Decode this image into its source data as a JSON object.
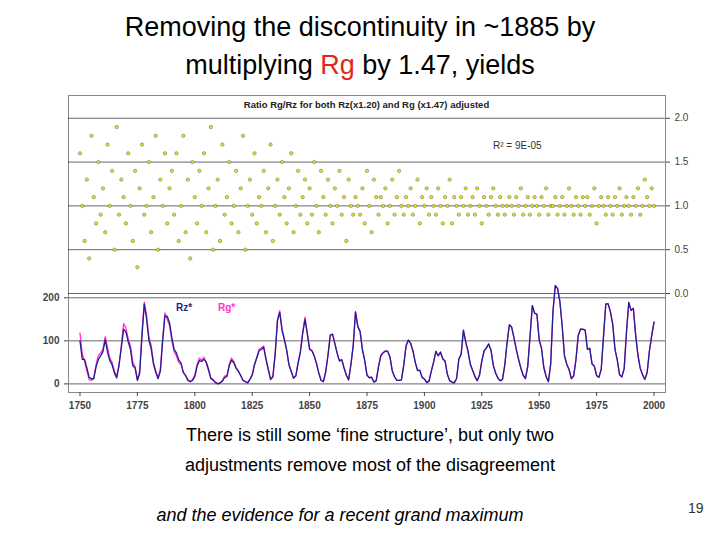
{
  "slide": {
    "title": [
      "Removing the discontinuity in ~1885 by",
      "multiplying Rg by 1.47, yields"
    ],
    "title_highlight": "Rg",
    "title_highlight_color": "#e3261d",
    "caption": [
      "There is still some ‘fine structure’, but only two",
      "adjustments remove most of the disagreement"
    ],
    "caption_italic": "and the evidence for a recent grand maximum",
    "page": 19
  },
  "chart_data": {
    "type": "line",
    "title": "Ratio Rg/Rz for both Rz(x1.20) and Rg (x1.47) adjusted",
    "annotations": [
      "R² = 9E-05"
    ],
    "legend": "left",
    "grid": true,
    "xlim": [
      1745,
      2005
    ],
    "xticks": [
      1750,
      1775,
      1800,
      1825,
      1850,
      1875,
      1900,
      1925,
      1950,
      1975,
      2000
    ],
    "ylim": [
      -20,
      670
    ],
    "yticks": [
      0,
      100,
      200
    ],
    "y2lim": [
      -1.13,
      2.26
    ],
    "y2ticks": [
      0,
      0.5,
      1,
      1.5,
      2
    ],
    "x": [
      1750,
      1751,
      1752,
      1753,
      1754,
      1755,
      1756,
      1757,
      1758,
      1759,
      1760,
      1761,
      1762,
      1763,
      1764,
      1765,
      1766,
      1767,
      1768,
      1769,
      1770,
      1771,
      1772,
      1773,
      1774,
      1775,
      1776,
      1777,
      1778,
      1779,
      1780,
      1781,
      1782,
      1783,
      1784,
      1785,
      1786,
      1787,
      1788,
      1789,
      1790,
      1791,
      1792,
      1793,
      1794,
      1795,
      1796,
      1797,
      1798,
      1799,
      1800,
      1801,
      1802,
      1803,
      1804,
      1805,
      1806,
      1807,
      1808,
      1809,
      1810,
      1811,
      1812,
      1813,
      1814,
      1815,
      1816,
      1817,
      1818,
      1819,
      1820,
      1821,
      1822,
      1823,
      1824,
      1825,
      1826,
      1827,
      1828,
      1829,
      1830,
      1831,
      1832,
      1833,
      1834,
      1835,
      1836,
      1837,
      1838,
      1839,
      1840,
      1841,
      1842,
      1843,
      1844,
      1845,
      1846,
      1847,
      1848,
      1849,
      1850,
      1851,
      1852,
      1853,
      1854,
      1855,
      1856,
      1857,
      1858,
      1859,
      1860,
      1861,
      1862,
      1863,
      1864,
      1865,
      1866,
      1867,
      1868,
      1869,
      1870,
      1871,
      1872,
      1873,
      1874,
      1875,
      1876,
      1877,
      1878,
      1879,
      1880,
      1881,
      1882,
      1883,
      1884,
      1885,
      1886,
      1887,
      1888,
      1889,
      1890,
      1891,
      1892,
      1893,
      1894,
      1895,
      1896,
      1897,
      1898,
      1899,
      1900,
      1901,
      1902,
      1903,
      1904,
      1905,
      1906,
      1907,
      1908,
      1909,
      1910,
      1911,
      1912,
      1913,
      1914,
      1915,
      1916,
      1917,
      1918,
      1919,
      1920,
      1921,
      1922,
      1923,
      1924,
      1925,
      1926,
      1927,
      1928,
      1929,
      1930,
      1931,
      1932,
      1933,
      1934,
      1935,
      1936,
      1937,
      1938,
      1939,
      1940,
      1941,
      1942,
      1943,
      1944,
      1945,
      1946,
      1947,
      1948,
      1949,
      1950,
      1951,
      1952,
      1953,
      1954,
      1955,
      1956,
      1957,
      1958,
      1959,
      1960,
      1961,
      1962,
      1963,
      1964,
      1965,
      1966,
      1967,
      1968,
      1969,
      1970,
      1971,
      1972,
      1973,
      1974,
      1975,
      1976,
      1977,
      1978,
      1979,
      1980,
      1981,
      1982,
      1983,
      1984,
      1985,
      1986,
      1987,
      1988,
      1989,
      1990,
      1991,
      1992,
      1993,
      1994,
      1995,
      1996,
      1997,
      1998,
      1999,
      2000
    ],
    "series": [
      {
        "name": "Rg*",
        "type": "line",
        "color": "#ff33cc",
        "values": [
          118,
          70,
          52,
          30,
          10,
          8,
          15,
          45,
          66,
          72,
          80,
          110,
          85,
          60,
          50,
          30,
          18,
          40,
          90,
          140,
          130,
          105,
          88,
          50,
          40,
          10,
          30,
          120,
          190,
          160,
          110,
          90,
          50,
          30,
          15,
          35,
          105,
          165,
          150,
          135,
          100,
          75,
          65,
          50,
          45,
          28,
          20,
          10,
          6,
          10,
          20,
          45,
          60,
          55,
          62,
          48,
          30,
          14,
          8,
          4,
          1,
          3,
          8,
          18,
          20,
          45,
          60,
          52,
          38,
          30,
          20,
          9,
          6,
          3,
          12,
          22,
          46,
          62,
          80,
          84,
          88,
          60,
          35,
          12,
          18,
          70,
          150,
          170,
          128,
          105,
          80,
          46,
          30,
          14,
          20,
          50,
          76,
          120,
          155,
          118,
          82,
          78,
          66,
          48,
          26,
          9,
          6,
          28,
          67,
          114,
          116,
          94,
          72,
          54,
          57,
          38,
          21,
          10,
          46,
          90,
          168,
          134,
          121,
          80,
          55,
          21,
          15,
          16,
          5,
          8,
          40,
          66,
          73,
          77,
          75,
          62,
          31,
          17,
          9,
          8,
          10,
          44,
          89,
          101,
          95,
          76,
          51,
          32,
          31,
          16,
          12,
          4,
          7,
          30,
          51,
          75,
          66,
          73,
          59,
          52,
          23,
          8,
          5,
          3,
          13,
          58,
          70,
          124,
          98,
          75,
          46,
          32,
          18,
          8,
          21,
          54,
          76,
          84,
          92,
          79,
          44,
          26,
          14,
          8,
          11,
          44,
          95,
          138,
          131,
          108,
          80,
          58,
          36,
          21,
          13,
          41,
          110,
          181,
          165,
          161,
          102,
          82,
          39,
          18,
          6,
          47,
          168,
          229,
          221,
          192,
          134,
          66,
          46,
          34,
          13,
          19,
          57,
          112,
          128,
          126,
          126,
          81,
          82,
          47,
          42,
          20,
          16,
          34,
          110,
          185,
          187,
          167,
          140,
          81,
          56,
          22,
          17,
          36,
          119,
          190,
          170,
          176,
          114,
          67,
          37,
          22,
          11,
          27,
          76,
          113,
          143
        ]
      },
      {
        "name": "Rz*",
        "type": "line",
        "color": "#1f1f8f",
        "values": [
          100,
          57,
          57,
          37,
          15,
          12,
          12,
          39,
          57,
          65,
          75,
          103,
          73,
          54,
          44,
          25,
          14,
          45,
          84,
          127,
          121,
          98,
          80,
          42,
          37,
          8,
          24,
          111,
          185,
          151,
          102,
          82,
          46,
          27,
          12,
          29,
          99,
          158,
          157,
          142,
          108,
          80,
          72,
          56,
          49,
          26,
          19,
          8,
          5,
          8,
          17,
          41,
          54,
          52,
          57,
          51,
          34,
          12,
          10,
          3,
          0,
          2,
          6,
          15,
          17,
          42,
          55,
          49,
          36,
          29,
          19,
          8,
          5,
          2,
          10,
          20,
          44,
          60,
          77,
          80,
          85,
          57,
          33,
          10,
          16,
          68,
          146,
          166,
          124,
          103,
          78,
          44,
          29,
          13,
          18,
          48,
          74,
          118,
          150,
          116,
          80,
          77,
          65,
          47,
          25,
          8,
          5,
          27,
          66,
          113,
          115,
          93,
          71,
          53,
          56,
          37,
          20,
          9,
          45,
          89,
          167,
          133,
          122,
          79,
          54,
          20,
          14,
          15,
          4,
          7,
          39,
          65,
          72,
          76,
          76,
          63,
          30,
          16,
          8,
          8,
          9,
          43,
          88,
          102,
          94,
          77,
          50,
          31,
          32,
          15,
          11,
          3,
          6,
          29,
          50,
          76,
          65,
          74,
          58,
          53,
          22,
          7,
          4,
          2,
          12,
          57,
          69,
          125,
          97,
          76,
          45,
          31,
          17,
          7,
          20,
          53,
          77,
          83,
          93,
          78,
          43,
          25,
          13,
          7,
          10,
          43,
          96,
          137,
          132,
          107,
          81,
          57,
          37,
          20,
          12,
          40,
          111,
          182,
          164,
          162,
          101,
          83,
          38,
          17,
          5,
          46,
          170,
          228,
          222,
          191,
          135,
          65,
          45,
          33,
          12,
          18,
          56,
          113,
          127,
          127,
          125,
          80,
          83,
          46,
          41,
          19,
          15,
          33,
          111,
          186,
          186,
          168,
          139,
          80,
          55,
          21,
          16,
          35,
          120,
          189,
          171,
          175,
          113,
          66,
          36,
          21,
          10,
          26,
          77,
          112,
          144
        ]
      },
      {
        "type": "scatter",
        "axis": "y2",
        "color": "#e6e21a",
        "marker": "circle",
        "values": [
          1.6,
          1.0,
          0.6,
          1.3,
          0.4,
          1.8,
          1.1,
          0.8,
          1.5,
          0.9,
          1.2,
          0.7,
          1.7,
          1.0,
          1.4,
          0.5,
          1.9,
          0.9,
          1.3,
          1.1,
          0.8,
          1.6,
          1.0,
          0.6,
          1.4,
          0.3,
          1.2,
          1.7,
          0.9,
          1.0,
          1.5,
          0.7,
          1.1,
          1.8,
          0.5,
          1.3,
          1.0,
          1.6,
          0.8,
          1.2,
          1.4,
          0.9,
          1.6,
          0.6,
          1.0,
          1.8,
          0.7,
          1.3,
          0.4,
          1.5,
          1.1,
          0.8,
          1.4,
          1.0,
          1.6,
          0.7,
          1.2,
          1.9,
          0.5,
          1.0,
          1.3,
          0.6,
          1.7,
          0.9,
          1.1,
          1.5,
          0.8,
          1.0,
          1.4,
          0.7,
          1.2,
          1.8,
          0.5,
          1.0,
          1.3,
          0.9,
          1.6,
          0.8,
          1.1,
          1.0,
          1.4,
          0.7,
          1.2,
          1.7,
          0.6,
          1.0,
          1.3,
          0.9,
          1.5,
          1.1,
          0.8,
          1.2,
          1.6,
          0.7,
          1.0,
          1.4,
          0.9,
          1.1,
          1.3,
          0.8,
          1.2,
          0.9,
          1.5,
          1.0,
          0.7,
          1.4,
          1.1,
          0.9,
          1.3,
          1.0,
          0.8,
          1.2,
          1.0,
          1.4,
          0.9,
          1.1,
          0.6,
          1.3,
          1.0,
          0.9,
          1.1,
          1.0,
          0.9,
          1.2,
          0.8,
          1.4,
          1.0,
          0.7,
          1.3,
          1.1,
          0.9,
          1.1,
          1.0,
          1.2,
          0.8,
          1.0,
          1.3,
          0.9,
          1.1,
          1.4,
          1.0,
          0.9,
          1.1,
          1.0,
          1.2,
          0.9,
          1.0,
          1.3,
          0.8,
          1.1,
          1.0,
          1.2,
          0.9,
          1.1,
          1.0,
          0.9,
          1.2,
          1.0,
          0.8,
          1.1,
          1.0,
          1.3,
          0.8,
          1.1,
          1.0,
          0.9,
          1.1,
          1.0,
          1.2,
          0.9,
          1.0,
          1.1,
          0.9,
          1.2,
          1.0,
          0.8,
          1.1,
          1.0,
          0.9,
          1.1,
          1.2,
          1.0,
          0.9,
          1.1,
          1.0,
          0.9,
          1.0,
          1.1,
          1.0,
          0.9,
          1.1,
          1.0,
          1.2,
          0.9,
          1.0,
          1.1,
          0.9,
          1.0,
          1.1,
          1.0,
          0.9,
          1.1,
          1.0,
          1.2,
          0.9,
          1.0,
          1.0,
          1.1,
          0.9,
          1.0,
          1.1,
          0.9,
          1.0,
          1.2,
          1.0,
          0.9,
          1.1,
          1.0,
          0.9,
          1.1,
          1.0,
          1.1,
          0.9,
          1.0,
          1.2,
          0.8,
          1.0,
          1.1,
          1.0,
          0.9,
          1.1,
          1.0,
          0.9,
          1.1,
          1.0,
          1.2,
          0.9,
          1.0,
          1.1,
          1.0,
          0.9,
          1.1,
          1.0,
          1.2,
          0.9,
          1.0,
          1.3,
          1.1,
          1.0,
          1.2,
          1.0
        ]
      }
    ]
  }
}
